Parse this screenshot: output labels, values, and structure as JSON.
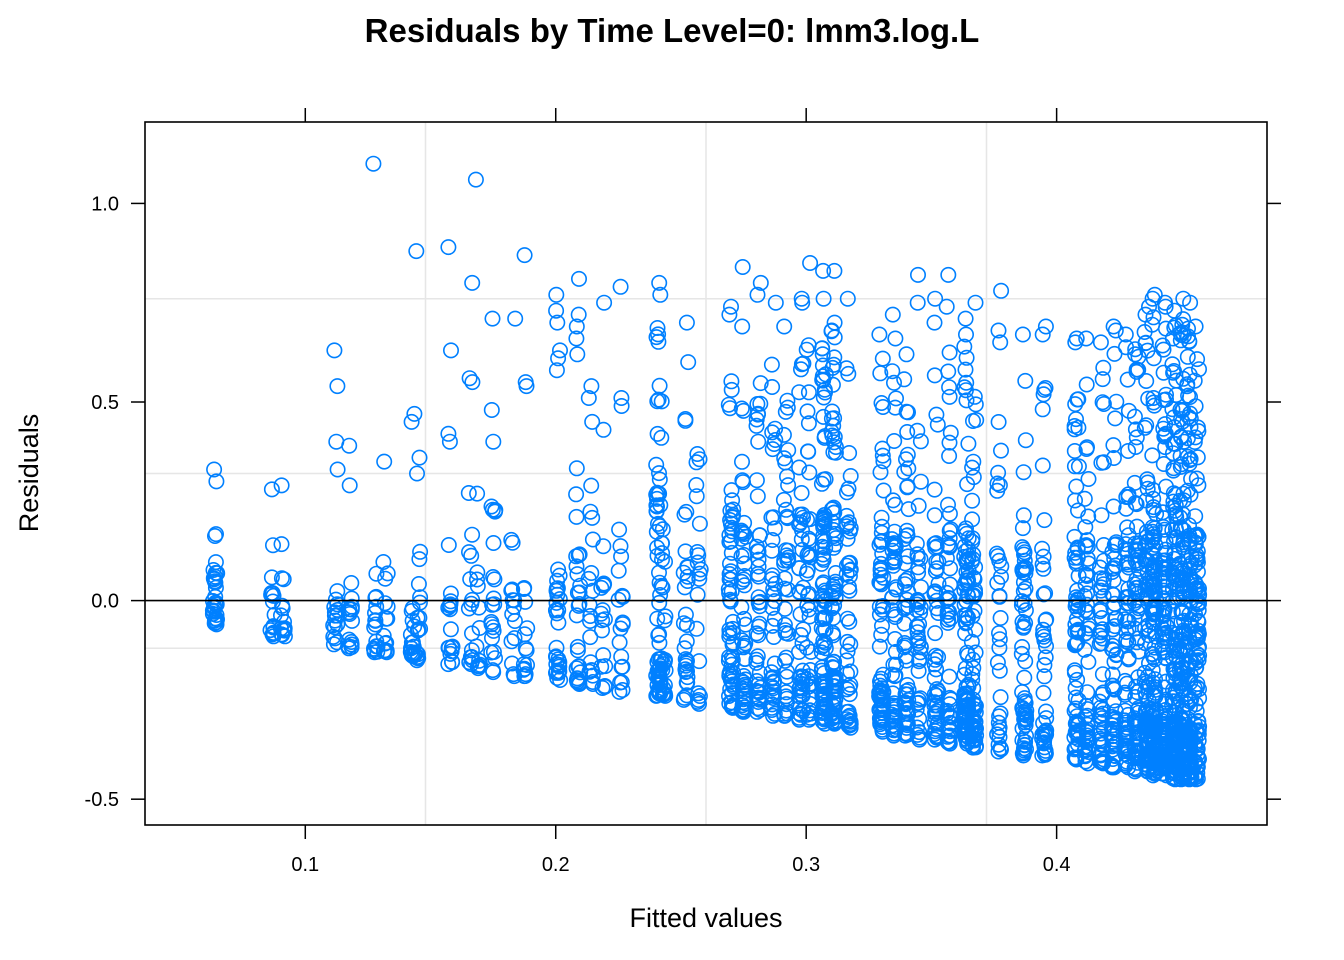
{
  "chart_data": {
    "type": "scatter",
    "title": "Residuals by Time Level=0: lmm3.log.L",
    "xlabel": "Fitted values",
    "ylabel": "Residuals",
    "xlim": [
      0.036,
      0.484
    ],
    "ylim": [
      -0.565,
      1.205
    ],
    "x_ticks": [
      0.1,
      0.2,
      0.3,
      0.4
    ],
    "x_tick_labels": [
      "0.1",
      "0.2",
      "0.3",
      "0.4"
    ],
    "y_ticks": [
      -0.5,
      0.0,
      0.5,
      1.0
    ],
    "y_tick_labels": [
      "-0.5",
      "0.0",
      "0.5",
      "1.0"
    ],
    "grid": true,
    "grid_x": [
      0.148,
      0.26,
      0.372
    ],
    "grid_y": [
      -0.12,
      0.32,
      0.76
    ],
    "reference_line_y": 0,
    "marker_color": "#0080ff",
    "columns": [
      {
        "x": 0.064,
        "n": 30,
        "lo": -0.06,
        "hi": 0.19,
        "extra": [
          0.33,
          0.3
        ]
      },
      {
        "x": 0.087,
        "n": 14,
        "lo": -0.09,
        "hi": 0.14,
        "extra": [
          0.28
        ]
      },
      {
        "x": 0.091,
        "n": 12,
        "lo": -0.09,
        "hi": 0.18,
        "extra": [
          0.29
        ]
      },
      {
        "x": 0.112,
        "n": 14,
        "lo": -0.11,
        "hi": 0.14,
        "extra": [
          0.63,
          0.54,
          0.4,
          0.33
        ]
      },
      {
        "x": 0.118,
        "n": 12,
        "lo": -0.12,
        "hi": 0.08,
        "extra": [
          0.39,
          0.29
        ]
      },
      {
        "x": 0.128,
        "n": 14,
        "lo": -0.13,
        "hi": 0.1,
        "extra": [
          1.1
        ]
      },
      {
        "x": 0.132,
        "n": 12,
        "lo": -0.13,
        "hi": 0.1,
        "extra": [
          0.35
        ]
      },
      {
        "x": 0.143,
        "n": 16,
        "lo": -0.14,
        "hi": 0.1,
        "extra": [
          0.47,
          0.45
        ]
      },
      {
        "x": 0.145,
        "n": 14,
        "lo": -0.15,
        "hi": 0.15,
        "extra": [
          0.88,
          0.36,
          0.32
        ]
      },
      {
        "x": 0.158,
        "n": 16,
        "lo": -0.16,
        "hi": 0.2,
        "extra": [
          0.89,
          0.63,
          0.42,
          0.4
        ]
      },
      {
        "x": 0.166,
        "n": 14,
        "lo": -0.16,
        "hi": 0.3,
        "extra": [
          0.8,
          0.56,
          0.55
        ]
      },
      {
        "x": 0.169,
        "n": 10,
        "lo": -0.17,
        "hi": 0.27,
        "extra": [
          1.06
        ]
      },
      {
        "x": 0.175,
        "n": 18,
        "lo": -0.18,
        "hi": 0.26,
        "extra": [
          0.71,
          0.48,
          0.4
        ]
      },
      {
        "x": 0.183,
        "n": 12,
        "lo": -0.19,
        "hi": 0.22,
        "extra": [
          0.71
        ]
      },
      {
        "x": 0.188,
        "n": 12,
        "lo": -0.19,
        "hi": 0.05,
        "extra": [
          0.87,
          0.55,
          0.54
        ]
      },
      {
        "x": 0.201,
        "n": 26,
        "lo": -0.2,
        "hi": 0.34,
        "extra": [
          0.77,
          0.73,
          0.7,
          0.63,
          0.61,
          0.58
        ]
      },
      {
        "x": 0.209,
        "n": 24,
        "lo": -0.21,
        "hi": 0.35,
        "extra": [
          0.81,
          0.72,
          0.69,
          0.66,
          0.62
        ]
      },
      {
        "x": 0.214,
        "n": 16,
        "lo": -0.21,
        "hi": 0.3,
        "extra": [
          0.54,
          0.51,
          0.45
        ]
      },
      {
        "x": 0.219,
        "n": 14,
        "lo": -0.22,
        "hi": 0.49,
        "extra": [
          0.75,
          0.43
        ]
      },
      {
        "x": 0.226,
        "n": 16,
        "lo": -0.23,
        "hi": 0.33,
        "extra": [
          0.79,
          0.51,
          0.49
        ]
      },
      {
        "x": 0.241,
        "n": 60,
        "lo": -0.24,
        "hi": 0.72,
        "extra": [
          0.77,
          0.8
        ]
      },
      {
        "x": 0.243,
        "n": 24,
        "lo": -0.24,
        "hi": 0.6,
        "extra": []
      },
      {
        "x": 0.252,
        "n": 30,
        "lo": -0.25,
        "hi": 0.62,
        "extra": [
          0.7
        ]
      },
      {
        "x": 0.257,
        "n": 18,
        "lo": -0.26,
        "hi": 0.49,
        "extra": []
      },
      {
        "x": 0.27,
        "n": 60,
        "lo": -0.27,
        "hi": 0.61,
        "extra": [
          0.74,
          0.72
        ]
      },
      {
        "x": 0.275,
        "n": 46,
        "lo": -0.28,
        "hi": 0.58,
        "extra": [
          0.84,
          0.69
        ]
      },
      {
        "x": 0.281,
        "n": 44,
        "lo": -0.28,
        "hi": 0.58,
        "extra": [
          0.8,
          0.77
        ]
      },
      {
        "x": 0.287,
        "n": 40,
        "lo": -0.29,
        "hi": 0.62,
        "extra": [
          0.75
        ]
      },
      {
        "x": 0.292,
        "n": 40,
        "lo": -0.29,
        "hi": 0.66,
        "extra": [
          0.69
        ]
      },
      {
        "x": 0.298,
        "n": 44,
        "lo": -0.3,
        "hi": 0.64,
        "extra": [
          0.76,
          0.75
        ]
      },
      {
        "x": 0.301,
        "n": 36,
        "lo": -0.3,
        "hi": 0.65,
        "extra": [
          0.85
        ]
      },
      {
        "x": 0.307,
        "n": 90,
        "lo": -0.31,
        "hi": 0.65,
        "extra": [
          0.83,
          0.76
        ]
      },
      {
        "x": 0.311,
        "n": 80,
        "lo": -0.31,
        "hi": 0.7,
        "extra": [
          0.83
        ]
      },
      {
        "x": 0.317,
        "n": 44,
        "lo": -0.32,
        "hi": 0.63,
        "extra": [
          0.76
        ]
      },
      {
        "x": 0.33,
        "n": 70,
        "lo": -0.33,
        "hi": 0.63,
        "extra": [
          0.67
        ]
      },
      {
        "x": 0.335,
        "n": 54,
        "lo": -0.34,
        "hi": 0.6,
        "extra": [
          0.72,
          0.66
        ]
      },
      {
        "x": 0.34,
        "n": 54,
        "lo": -0.34,
        "hi": 0.6,
        "extra": [
          0.62
        ]
      },
      {
        "x": 0.345,
        "n": 40,
        "lo": -0.35,
        "hi": 0.5,
        "extra": [
          0.75,
          0.82
        ]
      },
      {
        "x": 0.352,
        "n": 48,
        "lo": -0.35,
        "hi": 0.62,
        "extra": [
          0.76,
          0.7
        ]
      },
      {
        "x": 0.357,
        "n": 48,
        "lo": -0.36,
        "hi": 0.63,
        "extra": [
          0.82,
          0.74
        ]
      },
      {
        "x": 0.364,
        "n": 90,
        "lo": -0.36,
        "hi": 0.64,
        "extra": [
          0.71,
          0.67
        ]
      },
      {
        "x": 0.367,
        "n": 60,
        "lo": -0.37,
        "hi": 0.62,
        "extra": [
          0.75
        ]
      },
      {
        "x": 0.377,
        "n": 30,
        "lo": -0.38,
        "hi": 0.56,
        "extra": [
          0.78,
          0.68,
          0.65
        ]
      },
      {
        "x": 0.387,
        "n": 60,
        "lo": -0.39,
        "hi": 0.6,
        "extra": [
          0.67
        ]
      },
      {
        "x": 0.395,
        "n": 40,
        "lo": -0.39,
        "hi": 0.56,
        "extra": [
          0.69,
          0.67
        ]
      },
      {
        "x": 0.408,
        "n": 70,
        "lo": -0.4,
        "hi": 0.62,
        "extra": [
          0.66,
          0.65
        ]
      },
      {
        "x": 0.412,
        "n": 50,
        "lo": -0.41,
        "hi": 0.62,
        "extra": [
          0.66
        ]
      },
      {
        "x": 0.418,
        "n": 50,
        "lo": -0.41,
        "hi": 0.6,
        "extra": [
          0.65
        ]
      },
      {
        "x": 0.423,
        "n": 60,
        "lo": -0.42,
        "hi": 0.64,
        "extra": [
          0.69,
          0.68
        ]
      },
      {
        "x": 0.428,
        "n": 60,
        "lo": -0.42,
        "hi": 0.65,
        "extra": [
          0.67
        ]
      },
      {
        "x": 0.432,
        "n": 70,
        "lo": -0.43,
        "hi": 0.64,
        "extra": [
          0.62
        ]
      },
      {
        "x": 0.436,
        "n": 90,
        "lo": -0.43,
        "hi": 0.68,
        "extra": [
          0.74,
          0.72
        ]
      },
      {
        "x": 0.439,
        "n": 110,
        "lo": -0.44,
        "hi": 0.72,
        "extra": [
          0.77,
          0.76
        ]
      },
      {
        "x": 0.443,
        "n": 120,
        "lo": -0.44,
        "hi": 0.71,
        "extra": [
          0.75,
          0.74
        ]
      },
      {
        "x": 0.447,
        "n": 120,
        "lo": -0.45,
        "hi": 0.7,
        "extra": [
          0.73
        ]
      },
      {
        "x": 0.45,
        "n": 120,
        "lo": -0.45,
        "hi": 0.71,
        "extra": [
          0.76
        ]
      },
      {
        "x": 0.453,
        "n": 110,
        "lo": -0.45,
        "hi": 0.69,
        "extra": [
          0.75
        ]
      },
      {
        "x": 0.456,
        "n": 100,
        "lo": -0.45,
        "hi": 0.68,
        "extra": [
          0.69
        ]
      }
    ]
  }
}
